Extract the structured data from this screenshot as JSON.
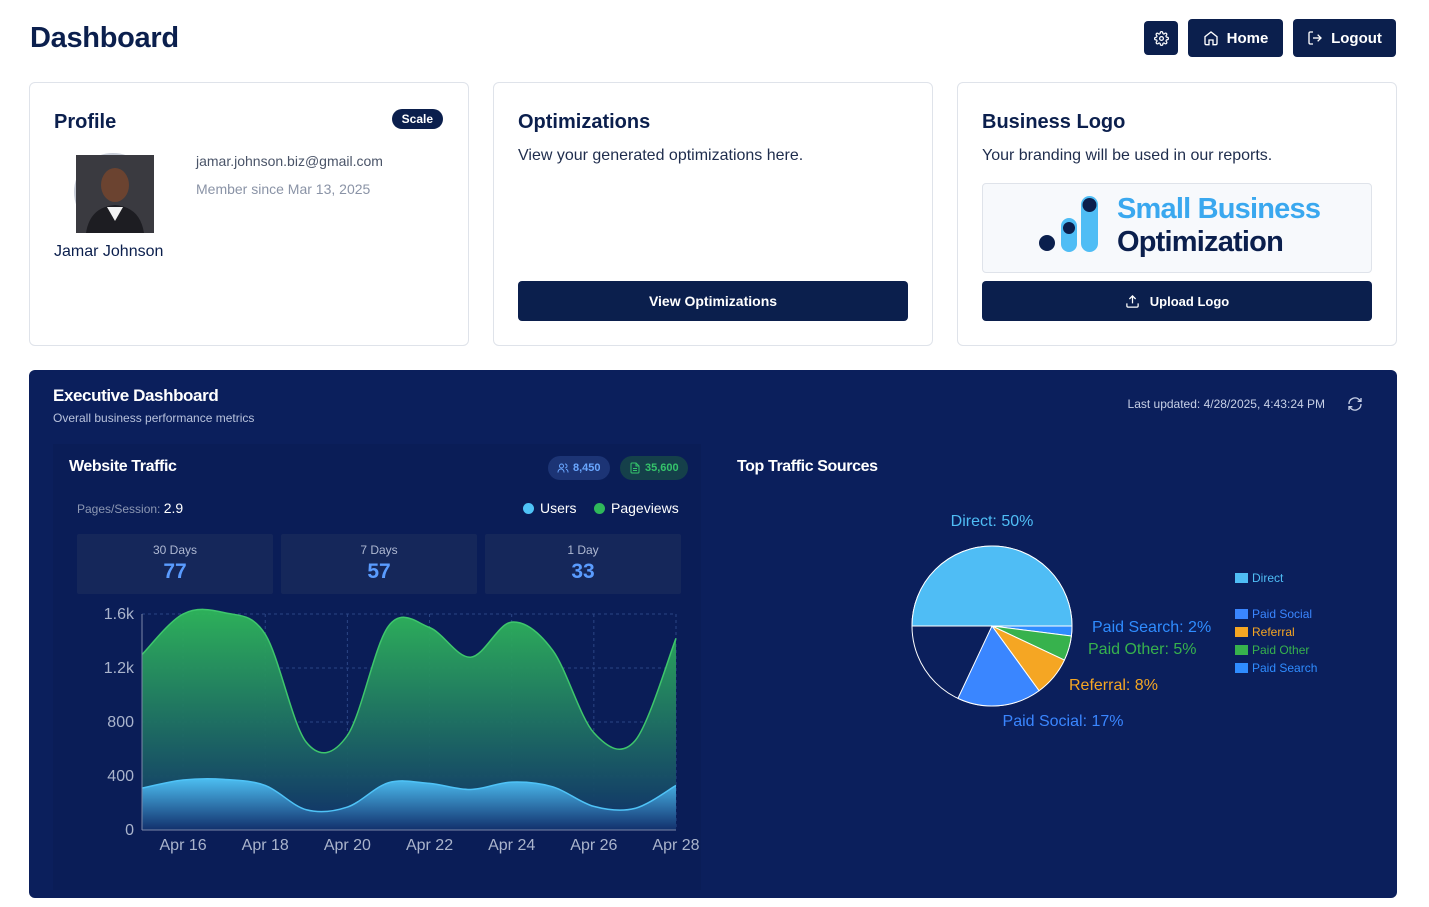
{
  "header": {
    "title": "Dashboard",
    "home_label": "Home",
    "logout_label": "Logout"
  },
  "profile": {
    "title": "Profile",
    "plan_badge": "Scale",
    "name": "Jamar Johnson",
    "email": "jamar.johnson.biz@gmail.com",
    "member_since": "Member since Mar 13, 2025"
  },
  "optimizations": {
    "title": "Optimizations",
    "description": "View your generated optimizations here.",
    "button_label": "View Optimizations"
  },
  "business_logo": {
    "title": "Business Logo",
    "description": "Your branding will be used in our reports.",
    "logo_line1": "Small Business",
    "logo_line2": "Optimization",
    "button_label": "Upload Logo"
  },
  "executive": {
    "title": "Executive Dashboard",
    "subtitle": "Overall business performance metrics",
    "last_updated": "Last updated: 4/28/2025, 4:43:24 PM"
  },
  "website_traffic": {
    "title": "Website Traffic",
    "users_total": "8,450",
    "pageviews_total": "35,600",
    "pages_per_session_label": "Pages/Session:",
    "pages_per_session_value": "2.9",
    "legend_users": "Users",
    "legend_pageviews": "Pageviews",
    "stats": [
      {
        "label": "30 Days",
        "value": "77"
      },
      {
        "label": "7 Days",
        "value": "57"
      },
      {
        "label": "1 Day",
        "value": "33"
      }
    ]
  },
  "top_traffic": {
    "title": "Top Traffic Sources"
  },
  "colors": {
    "navy": "#0b1f4d",
    "panel": "#0b1f5c",
    "users": "#4fc3f7",
    "pageviews": "#2fb85a",
    "direct": "#4fbdf5",
    "paid_social": "#3a86ff",
    "referral": "#f5a623",
    "paid_other": "#37b24d",
    "paid_search": "#2f8cff"
  },
  "chart_data": [
    {
      "type": "area",
      "title": "Website Traffic",
      "x": [
        "Apr 15",
        "Apr 16",
        "Apr 17",
        "Apr 18",
        "Apr 19",
        "Apr 20",
        "Apr 21",
        "Apr 22",
        "Apr 23",
        "Apr 24",
        "Apr 25",
        "Apr 26",
        "Apr 27",
        "Apr 28"
      ],
      "xticks": [
        "Apr 16",
        "Apr 18",
        "Apr 20",
        "Apr 22",
        "Apr 24",
        "Apr 26",
        "Apr 28"
      ],
      "yticks": [
        "0",
        "400",
        "800",
        "1.2k",
        "1.6k"
      ],
      "ylim": [
        0,
        1600
      ],
      "series": [
        {
          "name": "Pageviews",
          "values": [
            1300,
            1600,
            1610,
            1450,
            650,
            700,
            1510,
            1500,
            1280,
            1540,
            1330,
            720,
            660,
            1420
          ]
        },
        {
          "name": "Users",
          "values": [
            310,
            370,
            375,
            330,
            150,
            170,
            350,
            345,
            300,
            355,
            320,
            175,
            160,
            330
          ]
        }
      ]
    },
    {
      "type": "pie",
      "title": "Top Traffic Sources",
      "slices": [
        {
          "name": "Direct",
          "value": 50,
          "label": "Direct: 50%"
        },
        {
          "name": "Paid Search",
          "value": 2,
          "label": "Paid Search: 2%"
        },
        {
          "name": "Paid Other",
          "value": 5,
          "label": "Paid Other: 5%"
        },
        {
          "name": "Referral",
          "value": 8,
          "label": "Referral: 8%"
        },
        {
          "name": "Paid Social",
          "value": 17,
          "label": "Paid Social: 17%"
        }
      ],
      "legend": [
        "Direct",
        "Paid Social",
        "Referral",
        "Paid Other",
        "Paid Search"
      ]
    }
  ]
}
